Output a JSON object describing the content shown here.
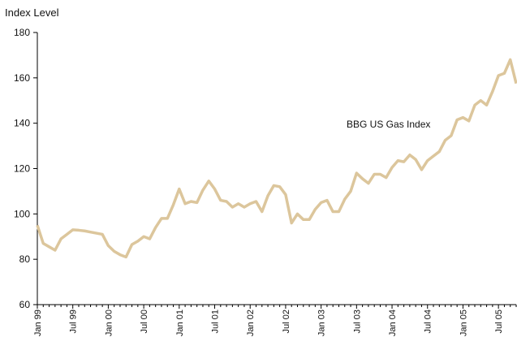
{
  "chart_data": {
    "type": "line",
    "y_label": "Index Level",
    "annotation": "BBG US Gas Index",
    "categories": [
      "Jan 99",
      null,
      null,
      null,
      null,
      null,
      "Jul 99",
      null,
      null,
      null,
      null,
      null,
      "Jan 00",
      null,
      null,
      null,
      null,
      null,
      "Jul 00",
      null,
      null,
      null,
      null,
      null,
      "Jan 01",
      null,
      null,
      null,
      null,
      null,
      "Jul 01",
      null,
      null,
      null,
      null,
      null,
      "Jan 02",
      null,
      null,
      null,
      null,
      null,
      "Jul 02",
      null,
      null,
      null,
      null,
      null,
      "Jan 03",
      null,
      null,
      null,
      null,
      null,
      "Jul 03",
      null,
      null,
      null,
      null,
      null,
      "Jan 04",
      null,
      null,
      null,
      null,
      null,
      "Jul 04",
      null,
      null,
      null,
      null,
      null,
      "Jan 05",
      null,
      null,
      null,
      null,
      null,
      "Jul 05",
      null,
      null,
      null
    ],
    "series": [
      {
        "name": "BBG US Gas Index",
        "color": "#dcc69c",
        "values": [
          95,
          87,
          85.5,
          84,
          89,
          91,
          93,
          92.8,
          92.5,
          92,
          91.5,
          91,
          86,
          83.5,
          82,
          81,
          86.5,
          88,
          90,
          89,
          94,
          98,
          98,
          104,
          111,
          104.5,
          105.5,
          105,
          110.5,
          114.5,
          111,
          106,
          105.5,
          103,
          104.5,
          103,
          104.5,
          105.5,
          101,
          108,
          112.5,
          112,
          108.5,
          96,
          100,
          97.5,
          97.5,
          102,
          105,
          106,
          101,
          101,
          106.5,
          110,
          118,
          115.5,
          113.5,
          117.5,
          117.5,
          116,
          120.5,
          123.5,
          123,
          126,
          124,
          119.5,
          123.5,
          125.5,
          127.5,
          132.5,
          134.5,
          141.5,
          142.5,
          141,
          148,
          150,
          148,
          154,
          161,
          162,
          168,
          157.5
        ]
      }
    ],
    "ylim": [
      60,
      180
    ],
    "yticks": [
      60,
      80,
      100,
      120,
      140,
      160,
      180
    ],
    "grid": false
  }
}
